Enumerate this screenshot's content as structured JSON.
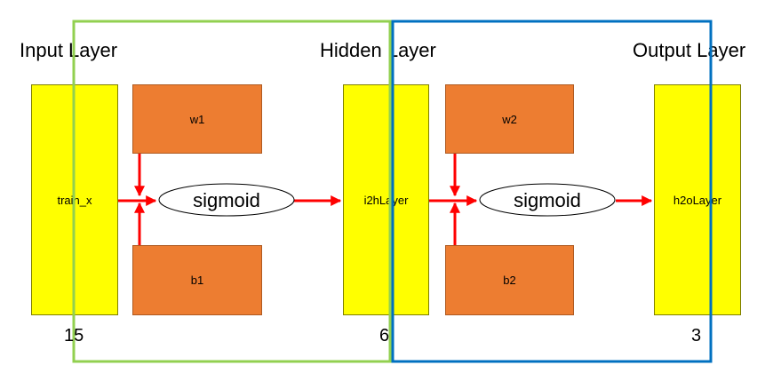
{
  "layers": {
    "input_title": "Input Layer",
    "hidden_title": "Hidden Layer",
    "output_title": "Output Layer"
  },
  "nodes": {
    "train_x": "train_x",
    "w1": "w1",
    "b1": "b1",
    "sigmoid1": "sigmoid",
    "i2h": "i2hLayer",
    "w2": "w2",
    "b2": "b2",
    "sigmoid2": "sigmoid",
    "h2o": "h2oLayer"
  },
  "sizes": {
    "input": "15",
    "hidden": "6",
    "output": "3"
  },
  "colors": {
    "layer_fill": "#ffff00",
    "weight_fill": "#ed7d31",
    "arrow": "#ff0000",
    "green_frame": "#92d050",
    "blue_frame": "#0070c0"
  }
}
